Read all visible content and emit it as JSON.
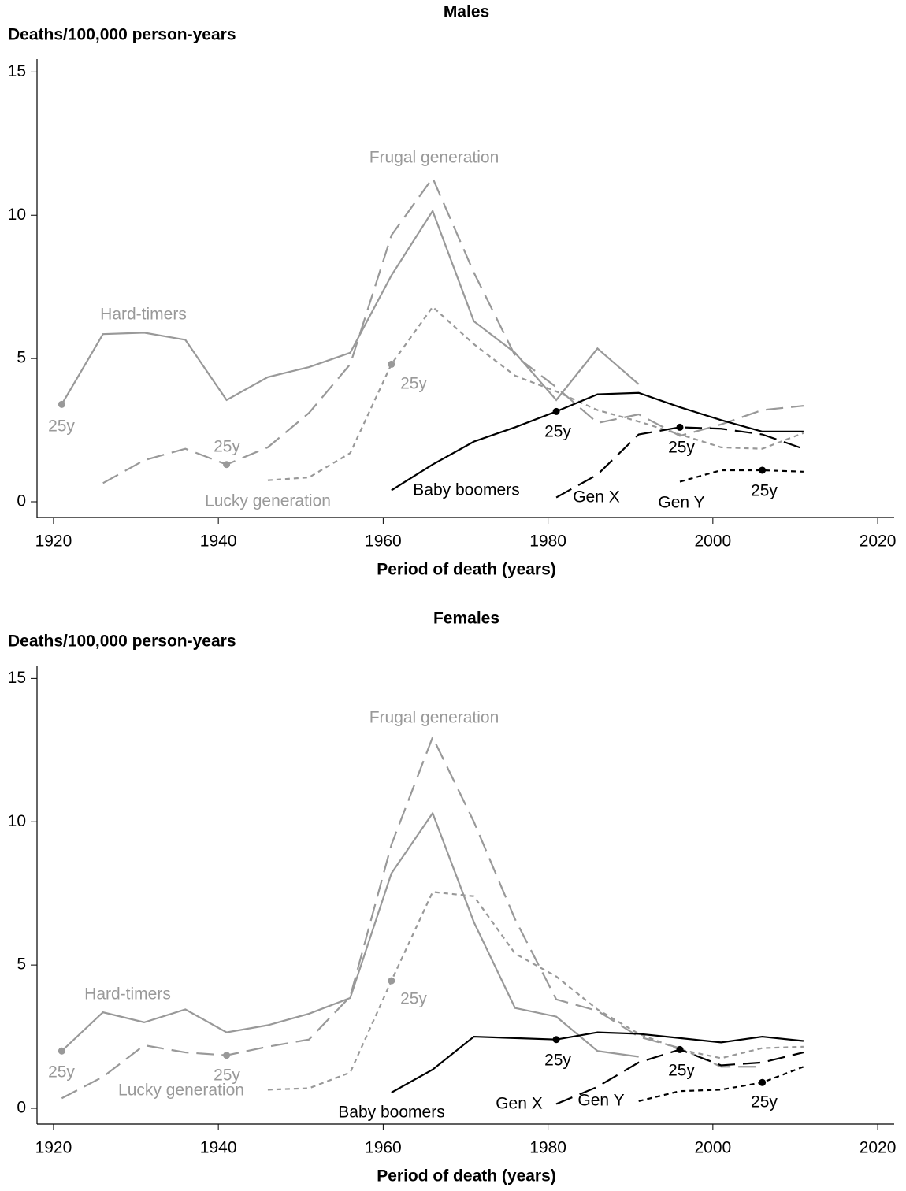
{
  "chart_data": [
    {
      "type": "line",
      "title": "Males",
      "ylabel": "Deaths/100,000 person-years",
      "xlabel": "Period of death (years)",
      "x": [
        1921,
        1926,
        1931,
        1936,
        1941,
        1946,
        1951,
        1956,
        1961,
        1966,
        1971,
        1976,
        1981,
        1986,
        1991,
        1996,
        2001,
        2006,
        2011
      ],
      "xlim": [
        1918,
        2022
      ],
      "xticks": [
        1920,
        1940,
        1960,
        1980,
        2000,
        2020
      ],
      "ylim": [
        -0.55,
        15.45
      ],
      "yticks": [
        0,
        5,
        10,
        15
      ],
      "series": [
        {
          "name": "Hard-timers",
          "color": "#999999",
          "dash": "solid",
          "marker_x": 1921,
          "marker_label": "25y",
          "values": [
            3.4,
            5.85,
            5.9,
            5.65,
            3.55,
            4.35,
            4.7,
            5.2,
            7.9,
            10.15,
            6.3,
            5.2,
            3.55,
            5.35,
            4.1,
            null,
            null,
            null,
            null
          ]
        },
        {
          "name": "Frugal generation",
          "color": "#999999",
          "dash": "long",
          "marker_x": 1941,
          "marker_label": "25y",
          "values": [
            null,
            0.65,
            1.45,
            1.85,
            1.3,
            1.9,
            3.1,
            4.8,
            9.3,
            11.3,
            8.0,
            5.1,
            4.0,
            2.75,
            3.05,
            2.3,
            2.7,
            3.2,
            3.35
          ]
        },
        {
          "name": "Lucky generation",
          "color": "#999999",
          "dash": "short",
          "marker_x": 1961,
          "marker_label": "25y",
          "values": [
            null,
            null,
            null,
            null,
            null,
            0.75,
            0.85,
            1.7,
            4.8,
            6.8,
            5.5,
            4.4,
            3.85,
            3.2,
            2.8,
            2.35,
            1.9,
            1.85,
            2.4
          ]
        },
        {
          "name": "Baby boomers",
          "color": "#000000",
          "dash": "solid",
          "marker_x": 1981,
          "marker_label": "25y",
          "values": [
            null,
            null,
            null,
            null,
            null,
            null,
            null,
            null,
            0.4,
            1.3,
            2.1,
            2.6,
            3.15,
            3.75,
            3.8,
            3.3,
            2.85,
            2.45,
            2.45
          ]
        },
        {
          "name": "Gen X",
          "color": "#000000",
          "dash": "long",
          "marker_x": 1996,
          "marker_label": "25y",
          "values": [
            null,
            null,
            null,
            null,
            null,
            null,
            null,
            null,
            null,
            null,
            null,
            null,
            0.15,
            0.95,
            2.35,
            2.6,
            2.55,
            2.35,
            1.85
          ]
        },
        {
          "name": "Gen Y",
          "color": "#000000",
          "dash": "short",
          "marker_x": 2006,
          "marker_label": "25y",
          "values": [
            null,
            null,
            null,
            null,
            null,
            null,
            null,
            null,
            null,
            null,
            null,
            null,
            null,
            null,
            null,
            0.7,
            1.1,
            1.1,
            1.05
          ]
        }
      ]
    },
    {
      "type": "line",
      "title": "Females",
      "ylabel": "Deaths/100,000 person-years",
      "xlabel": "Period of death (years)",
      "x": [
        1921,
        1926,
        1931,
        1936,
        1941,
        1946,
        1951,
        1956,
        1961,
        1966,
        1971,
        1976,
        1981,
        1986,
        1991,
        1996,
        2001,
        2006,
        2011
      ],
      "xlim": [
        1918,
        2022
      ],
      "xticks": [
        1920,
        1940,
        1960,
        1980,
        2000,
        2020
      ],
      "ylim": [
        -0.55,
        15.45
      ],
      "yticks": [
        0,
        5,
        10,
        15
      ],
      "series": [
        {
          "name": "Hard-timers",
          "color": "#999999",
          "dash": "solid",
          "marker_x": 1921,
          "marker_label": "25y",
          "values": [
            2.0,
            3.35,
            3.0,
            3.45,
            2.65,
            2.9,
            3.3,
            3.85,
            8.2,
            10.3,
            6.5,
            3.5,
            3.2,
            2.0,
            1.8,
            null,
            null,
            null,
            null
          ]
        },
        {
          "name": "Frugal generation",
          "color": "#999999",
          "dash": "long",
          "marker_x": 1941,
          "marker_label": "25y",
          "values": [
            0.35,
            1.1,
            2.2,
            1.95,
            1.85,
            2.15,
            2.4,
            3.9,
            9.2,
            12.95,
            10.0,
            6.6,
            3.8,
            3.4,
            2.5,
            2.1,
            1.45,
            1.45,
            null
          ]
        },
        {
          "name": "Lucky generation",
          "color": "#999999",
          "dash": "short",
          "marker_x": 1961,
          "marker_label": "25y",
          "values": [
            null,
            null,
            null,
            null,
            null,
            0.65,
            0.7,
            1.25,
            4.45,
            7.55,
            7.4,
            5.4,
            4.6,
            3.45,
            2.6,
            2.05,
            1.75,
            2.1,
            2.15
          ]
        },
        {
          "name": "Baby boomers",
          "color": "#000000",
          "dash": "solid",
          "marker_x": 1981,
          "marker_label": "25y",
          "values": [
            null,
            null,
            null,
            null,
            null,
            null,
            null,
            null,
            0.55,
            1.35,
            2.5,
            2.45,
            2.4,
            2.65,
            2.6,
            2.45,
            2.3,
            2.5,
            2.35
          ]
        },
        {
          "name": "Gen X",
          "color": "#000000",
          "dash": "long",
          "marker_x": 1996,
          "marker_label": "25y",
          "values": [
            null,
            null,
            null,
            null,
            null,
            null,
            null,
            null,
            null,
            null,
            null,
            null,
            0.15,
            0.75,
            1.6,
            2.05,
            1.5,
            1.6,
            1.95
          ]
        },
        {
          "name": "Gen Y",
          "color": "#000000",
          "dash": "short",
          "marker_x": 2006,
          "marker_label": "25y",
          "values": [
            null,
            null,
            null,
            null,
            null,
            null,
            null,
            null,
            null,
            null,
            null,
            null,
            null,
            null,
            0.25,
            0.6,
            0.65,
            0.9,
            1.45
          ]
        }
      ]
    }
  ]
}
